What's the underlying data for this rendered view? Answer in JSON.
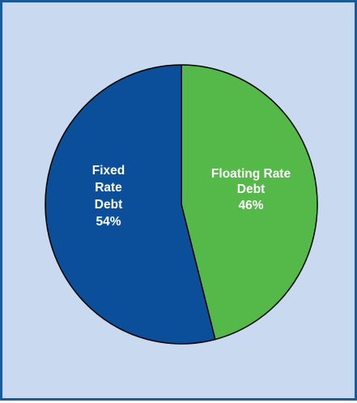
{
  "chart_data": {
    "type": "pie",
    "title": "",
    "slices": [
      {
        "label": "Floating Rate Debt",
        "value": 46,
        "color": "#55b94a",
        "text_lines": [
          "Floating Rate",
          "Debt",
          "46%"
        ]
      },
      {
        "label": "Fixed Rate Debt",
        "value": 54,
        "color": "#0b4f9a",
        "text_lines": [
          "Fixed",
          "Rate",
          "Debt",
          "54%"
        ]
      }
    ],
    "start": "top",
    "direction": "clockwise",
    "legend": "none"
  }
}
